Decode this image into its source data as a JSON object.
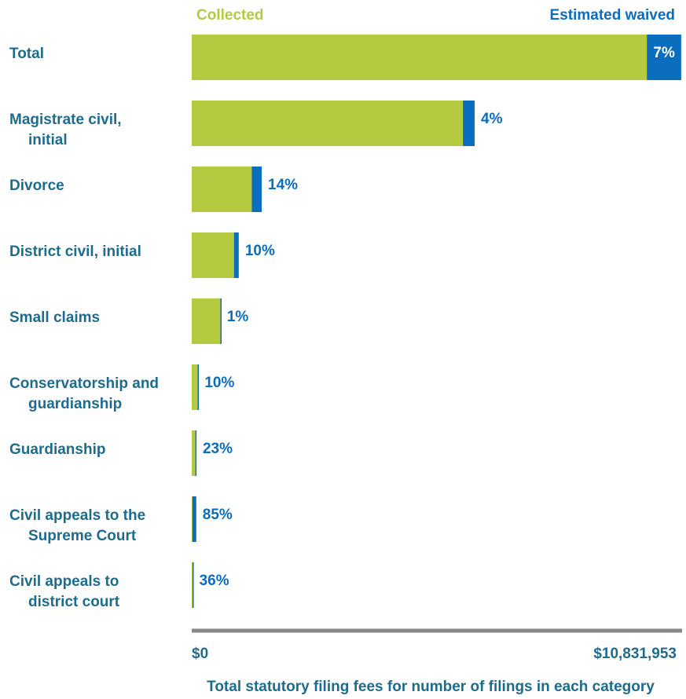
{
  "chart_data": {
    "type": "bar",
    "orientation": "horizontal",
    "stacked": true,
    "legend": [
      "Collected",
      "Estimated waived"
    ],
    "colors": {
      "collected": "#b5c941",
      "waived": "#0a6dbd",
      "label": "#1f6b8c",
      "axis": "#888888"
    },
    "categories": [
      [
        "Total"
      ],
      [
        "Magistrate civil,",
        "initial"
      ],
      [
        "Divorce"
      ],
      [
        "District civil, initial"
      ],
      [
        "Small claims"
      ],
      [
        "Conservatorship and",
        "guardianship"
      ],
      [
        "Guardianship"
      ],
      [
        "Civil appeals to the",
        "Supreme Court"
      ],
      [
        "Civil appeals to",
        "district court"
      ]
    ],
    "series": [
      {
        "name": "Collected",
        "values": [
          10070000,
          6000000,
          1330000,
          935000,
          635000,
          130000,
          80000,
          15000,
          18000
        ]
      },
      {
        "name": "Estimated waived",
        "values": [
          760000,
          260000,
          218000,
          105000,
          6000,
          15000,
          24000,
          85000,
          10000
        ]
      }
    ],
    "percent_labels": [
      "7%",
      "4%",
      "14%",
      "10%",
      "1%",
      "10%",
      "23%",
      "85%",
      "36%"
    ],
    "xlim": [
      0,
      10831953
    ],
    "x_tick_labels": [
      "$0",
      "$10,831,953"
    ],
    "xlabel": "Total statutory filing fees for number of filings in each category"
  }
}
